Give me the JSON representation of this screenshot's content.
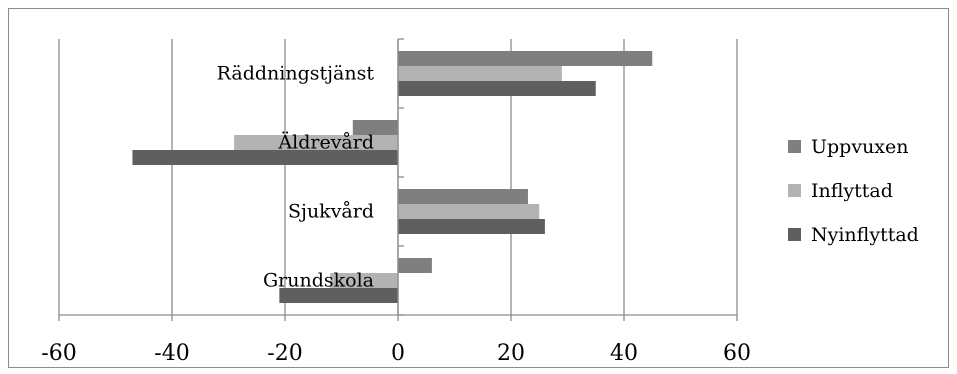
{
  "chart_data": {
    "type": "bar",
    "orientation": "horizontal",
    "categories": [
      "Räddningstjänst",
      "Äldrevård",
      "Sjukvård",
      "Grundskola"
    ],
    "series": [
      {
        "name": "Uppvuxen",
        "values": [
          45,
          -8,
          23,
          6
        ],
        "color": "#7f7f7f"
      },
      {
        "name": "Inflyttad",
        "values": [
          29,
          -29,
          25,
          -12
        ],
        "color": "#b3b3b3"
      },
      {
        "name": "Nyinflyttad",
        "values": [
          35,
          -47,
          26,
          -21
        ],
        "color": "#5f5f5f"
      }
    ],
    "xlim": [
      -60,
      60
    ],
    "xticks": [
      -60,
      -40,
      -20,
      0,
      20,
      40,
      60
    ],
    "xtick_labels": [
      "-60",
      "-40",
      "-20",
      "0",
      "20",
      "40",
      "60"
    ],
    "grid": "vertical",
    "legend_position": "right",
    "title": "",
    "xlabel": "",
    "ylabel": ""
  }
}
